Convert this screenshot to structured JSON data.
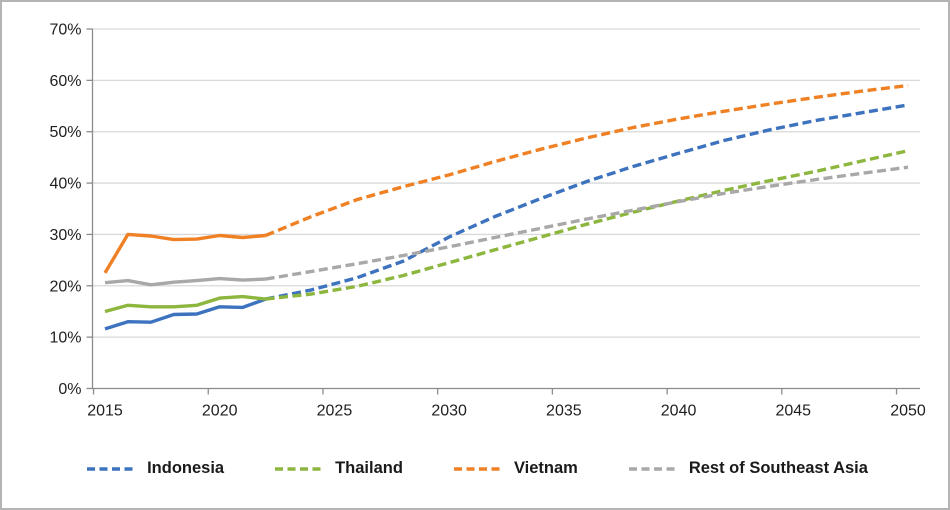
{
  "chart_data": {
    "type": "line",
    "title": "",
    "x_axis": {
      "tick_values": [
        2015,
        2020,
        2025,
        2030,
        2035,
        2040,
        2045,
        2050
      ],
      "tick_labels": [
        "2015",
        "2020",
        "2025",
        "2030",
        "2035",
        "2040",
        "2045",
        "2050"
      ],
      "range": [
        2015,
        2050
      ]
    },
    "y_axis": {
      "tick_values": [
        0,
        10,
        20,
        30,
        40,
        50,
        60,
        70
      ],
      "tick_labels": [
        "0%",
        "10%",
        "20%",
        "30%",
        "40%",
        "50%",
        "60%",
        "70%"
      ],
      "range": [
        0,
        70
      ],
      "unit": "%"
    },
    "grid": "horizontal",
    "legend_position": "bottom",
    "line_styles": {
      "historical": "solid",
      "projected": "dashed"
    },
    "series": [
      {
        "name": "Indonesia",
        "color": "#3d73be",
        "historical": {
          "years": [
            2015,
            2016,
            2017,
            2018,
            2019,
            2020,
            2021,
            2022
          ],
          "values": [
            11.6,
            13.0,
            12.9,
            14.4,
            14.5,
            15.9,
            15.8,
            17.4
          ]
        },
        "projected": {
          "years": [
            2022,
            2024,
            2026,
            2028,
            2030,
            2032,
            2034,
            2036,
            2038,
            2040,
            2042,
            2044,
            2046,
            2048,
            2050
          ],
          "values": [
            17.4,
            19.2,
            21.6,
            24.8,
            29.5,
            33.5,
            37.0,
            40.3,
            43.2,
            45.8,
            48.3,
            50.4,
            52.2,
            53.7,
            55.2
          ]
        }
      },
      {
        "name": "Thailand",
        "color": "#8db63e",
        "historical": {
          "years": [
            2015,
            2016,
            2017,
            2018,
            2019,
            2020,
            2021,
            2022
          ],
          "values": [
            15.0,
            16.2,
            15.9,
            15.9,
            16.2,
            17.6,
            17.9,
            17.4
          ]
        },
        "projected": {
          "years": [
            2022,
            2024,
            2026,
            2028,
            2030,
            2032,
            2034,
            2036,
            2038,
            2040,
            2042,
            2044,
            2046,
            2048,
            2050
          ],
          "values": [
            17.4,
            18.4,
            19.9,
            22.0,
            24.5,
            27.0,
            29.5,
            32.0,
            34.3,
            36.5,
            38.6,
            40.5,
            42.3,
            44.3,
            46.3
          ]
        }
      },
      {
        "name": "Vietnam",
        "color": "#ef8023",
        "historical": {
          "years": [
            2015,
            2016,
            2017,
            2018,
            2019,
            2020,
            2021,
            2022
          ],
          "values": [
            22.5,
            30.0,
            29.7,
            29.0,
            29.1,
            29.8,
            29.4,
            29.8
          ]
        },
        "projected": {
          "years": [
            2022,
            2024,
            2026,
            2028,
            2030,
            2032,
            2034,
            2036,
            2038,
            2040,
            2042,
            2044,
            2046,
            2048,
            2050
          ],
          "values": [
            29.8,
            33.5,
            36.8,
            39.3,
            41.6,
            44.2,
            46.6,
            48.8,
            50.8,
            52.5,
            54.0,
            55.4,
            56.7,
            57.9,
            59.0
          ]
        }
      },
      {
        "name": "Rest of Southeast Asia",
        "color": "#a8a8a8",
        "historical": {
          "years": [
            2015,
            2016,
            2017,
            2018,
            2019,
            2020,
            2021,
            2022
          ],
          "values": [
            20.6,
            21.0,
            20.2,
            20.7,
            21.0,
            21.4,
            21.1,
            21.3
          ]
        },
        "projected": {
          "years": [
            2022,
            2024,
            2026,
            2028,
            2030,
            2032,
            2034,
            2036,
            2038,
            2040,
            2042,
            2044,
            2046,
            2048,
            2050
          ],
          "values": [
            21.3,
            22.8,
            24.3,
            25.9,
            27.6,
            29.4,
            31.2,
            33.0,
            34.7,
            36.4,
            38.0,
            39.4,
            40.7,
            41.9,
            43.1
          ]
        }
      }
    ],
    "colors": {
      "gridline": "#d9d9d9",
      "axis": "#8c8c8c",
      "tick": "#8c8c8c",
      "label_text": "#1f1f1f"
    }
  }
}
